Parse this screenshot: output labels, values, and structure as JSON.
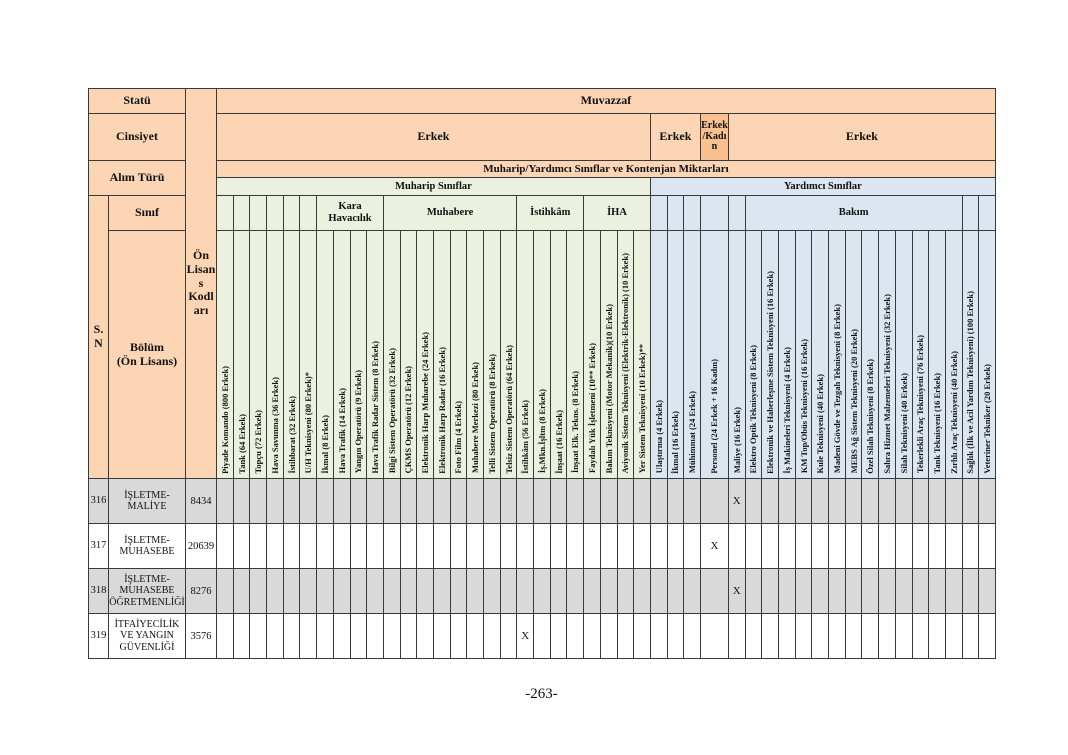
{
  "page": {
    "number": "-263-"
  },
  "left_headers": {
    "statu": "Statü",
    "cinsiyet": "Cinsiyet",
    "alim_turu": "Alım Türü",
    "sinif": "Sınıf",
    "sn": "S.\nN",
    "bolum": "Bölüm\n(Ön Lisans)",
    "kodlari": "Ön Lisans Kodları"
  },
  "top_headers": {
    "muvazzaf": "Muvazzaf",
    "cinsiyet_spans": [
      {
        "label": "Erkek",
        "span": 26,
        "variant": "light"
      },
      {
        "label": "Erkek",
        "span": 3,
        "variant": "light"
      },
      {
        "label": "Erkek/Kadın",
        "span": 1,
        "variant": "dark"
      },
      {
        "label": "Erkek",
        "span": 16,
        "variant": "light"
      }
    ],
    "kontenjan": "Muharip/Yardımcı Sınıflar ve Kontenjan Miktarları",
    "class_groups": [
      {
        "label": "Muharip Sınıflar",
        "span": 26,
        "section": "m"
      },
      {
        "label": "Yardımcı Sınıflar",
        "span": 20,
        "section": "y"
      }
    ],
    "branch_groups": [
      {
        "label": "",
        "span": 6,
        "section": "m"
      },
      {
        "label": "Kara Havacılık",
        "span": 4,
        "section": "m"
      },
      {
        "label": "Muhabere",
        "span": 8,
        "section": "m"
      },
      {
        "label": "İstihkâm",
        "span": 4,
        "section": "m"
      },
      {
        "label": "İHA",
        "span": 4,
        "section": "m"
      },
      {
        "label": "",
        "span": 5,
        "section": "y"
      },
      {
        "label": "Bakım",
        "span": 13,
        "section": "y"
      },
      {
        "label": "",
        "span": 2,
        "section": "y"
      }
    ]
  },
  "columns": [
    {
      "label": "Piyade Komando (800 Erkek)",
      "section": "m"
    },
    {
      "label": "Tank (64 Erkek)",
      "section": "m"
    },
    {
      "label": "Topçu (72 Erkek)",
      "section": "m"
    },
    {
      "label": "Hava Savunma (36 Erkek)",
      "section": "m"
    },
    {
      "label": "İstihbarat (32 Erkek)",
      "section": "m"
    },
    {
      "label": "U/H Teknisyeni (80 Erkek)*",
      "section": "m"
    },
    {
      "label": "İkmal (8 Erkek)",
      "section": "m"
    },
    {
      "label": "Hava Trafik (14 Erkek)",
      "section": "m"
    },
    {
      "label": "Yangın Operatörü (9 Erkek)",
      "section": "m"
    },
    {
      "label": "Hava Trafik Radar Sistem (8 Erkek)",
      "section": "m"
    },
    {
      "label": "Bilgi Sistem Operatörü (32 Erkek)",
      "section": "m"
    },
    {
      "label": "ÇKMS Operatörü (12 Erkek)",
      "section": "m"
    },
    {
      "label": "Elektronik Harp Muharebe (24 Erkek)",
      "section": "m"
    },
    {
      "label": "Elektronik Harp Radar (16 Erkek)",
      "section": "m"
    },
    {
      "label": "Foto Film (4 Erkek)",
      "section": "m"
    },
    {
      "label": "Muhabere Merkezi (80 Erkek)",
      "section": "m"
    },
    {
      "label": "Telli Sistem Operatörü (8 Erkek)",
      "section": "m"
    },
    {
      "label": "Telsiz Sistem Operatörü (64 Erkek)",
      "section": "m"
    },
    {
      "label": "İstihkâm (56 Erkek)",
      "section": "m"
    },
    {
      "label": "İş.Mkn.İşltm (8 Erkek)",
      "section": "m"
    },
    {
      "label": "İnşaat (16 Erkek)",
      "section": "m"
    },
    {
      "label": "İnşaat Elk. Tekns. (8 Erkek)",
      "section": "m"
    },
    {
      "label": "Faydalı Yük İşletmeni (10** Erkek)",
      "section": "m"
    },
    {
      "label": "Bakım Teknisyeni (Motor Mekanik)(10 Erkek)",
      "section": "m"
    },
    {
      "label": "Aviyonik Sistem Teknisyeni (Elektrik-Elektronik) (10 Erkek)",
      "section": "m"
    },
    {
      "label": "Yer Sistem Teknisyeni (10 Erkek)**",
      "section": "m"
    },
    {
      "label": "Ulaştırma (4 Erkek)",
      "section": "y"
    },
    {
      "label": "İkmal (16 Erkek)",
      "section": "y"
    },
    {
      "label": "Mühimmat (24 Erkek)",
      "section": "y"
    },
    {
      "label": "Personel (24 Erkek + 16 Kadın)",
      "section": "y",
      "wide": true
    },
    {
      "label": "Maliye (16 Erkek)",
      "section": "y"
    },
    {
      "label": "Elektro Optik Teknisyeni (8 Erkek)",
      "section": "y"
    },
    {
      "label": "Elektronik ve Haberleşme Sistem Teknisyeni (16 Erkek)",
      "section": "y"
    },
    {
      "label": "İş Makineleri Teknisyeni (4 Erkek)",
      "section": "y"
    },
    {
      "label": "KM Top/Obüs Teknisyeni (16 Erkek)",
      "section": "y"
    },
    {
      "label": "Kule Teknisyeni (40 Erkek)",
      "section": "y"
    },
    {
      "label": "Madeni Gövde ve Tezgah Teknisyeni (8 Erkek)",
      "section": "y"
    },
    {
      "label": "MEBS Ağ Sistem Teknisyeni (20 Erkek)",
      "section": "y"
    },
    {
      "label": "Özel Silah Teknisyeni (8 Erkek)",
      "section": "y"
    },
    {
      "label": "Sahra Hizmet Malzemeleri Teknisyeni (32 Erkek)",
      "section": "y"
    },
    {
      "label": "Silah Teknisyeni (40 Erkek)",
      "section": "y"
    },
    {
      "label": "Tekerlekli Araç Teknisyeni (76 Erkek)",
      "section": "y"
    },
    {
      "label": "Tank Teknisyeni (16 Erkek)",
      "section": "y"
    },
    {
      "label": "Zırhlı Araç Teknisyeni (40 Erkek)",
      "section": "y"
    },
    {
      "label": "Sağlık (İlk ve Acil Yardım Teknisyeni) (100 Erkek)",
      "section": "y"
    },
    {
      "label": "Veteriner Tekniker (20 Erkek)",
      "section": "y"
    }
  ],
  "rows": [
    {
      "sn": "316",
      "bolum": "İŞLETME-MALİYE",
      "kod": "8434",
      "marks": [
        {
          "col": 31,
          "value": "X"
        }
      ]
    },
    {
      "sn": "317",
      "bolum": "İŞLETME-MUHASEBE",
      "kod": "20639",
      "marks": [
        {
          "col": 30,
          "value": "X"
        }
      ]
    },
    {
      "sn": "318",
      "bolum": "İŞLETME-MUHASEBE ÖĞRETMENLİĞİ",
      "kod": "8276",
      "marks": [
        {
          "col": 31,
          "value": "X"
        }
      ]
    },
    {
      "sn": "319",
      "bolum": "İTFAİYECİLİK VE YANGIN GÜVENLİĞİ",
      "kod": "3576",
      "marks": [
        {
          "col": 19,
          "value": "X"
        }
      ]
    }
  ]
}
